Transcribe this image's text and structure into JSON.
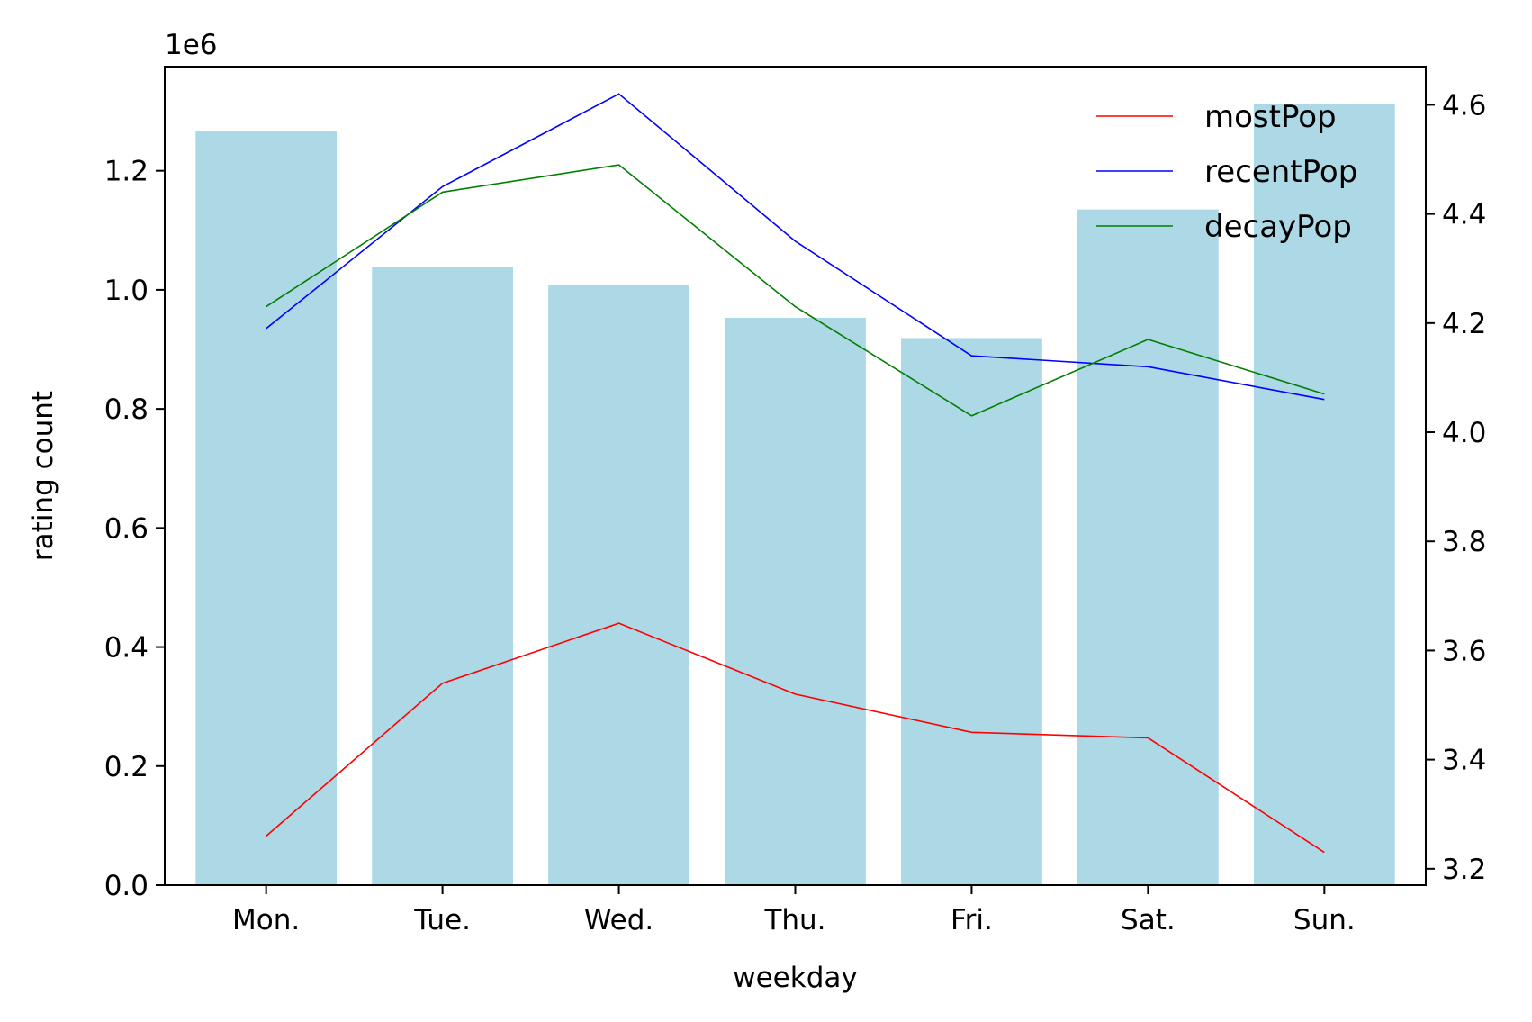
{
  "chart_data": {
    "type": "bar",
    "categories": [
      "Mon.",
      "Tue.",
      "Wed.",
      "Thu.",
      "Fri.",
      "Sat.",
      "Sun."
    ],
    "bars": {
      "values": [
        1266000,
        1039000,
        1008000,
        953000,
        919000,
        1135000,
        1312000
      ],
      "color": "#add8e6"
    },
    "left_axis": {
      "label": "rating count",
      "range": [
        0,
        1375000
      ],
      "ticks": [
        0,
        200000,
        400000,
        600000,
        800000,
        1000000,
        1200000
      ],
      "tick_labels": [
        "0.0",
        "0.2",
        "0.4",
        "0.6",
        "0.8",
        "1.0",
        "1.2"
      ],
      "offset_text": "1e6"
    },
    "right_axis": {
      "range": [
        3.17,
        4.67
      ],
      "ticks": [
        3.2,
        3.4,
        3.6,
        3.8,
        4.0,
        4.2,
        4.4,
        4.6
      ],
      "tick_labels": [
        "3.2",
        "3.4",
        "3.6",
        "3.8",
        "4.0",
        "4.2",
        "4.4",
        "4.6"
      ]
    },
    "xlabel": "weekday",
    "series": [
      {
        "name": "mostPop",
        "color": "#ff0000",
        "values": [
          3.26,
          3.54,
          3.65,
          3.52,
          3.45,
          3.44,
          3.23
        ]
      },
      {
        "name": "recentPop",
        "color": "#0000ff",
        "values": [
          4.19,
          4.45,
          4.62,
          4.35,
          4.14,
          4.12,
          4.06
        ]
      },
      {
        "name": "decayPop",
        "color": "#008000",
        "values": [
          4.23,
          4.44,
          4.49,
          4.23,
          4.03,
          4.17,
          4.07
        ]
      }
    ],
    "legend": "top-right",
    "grid": false
  }
}
